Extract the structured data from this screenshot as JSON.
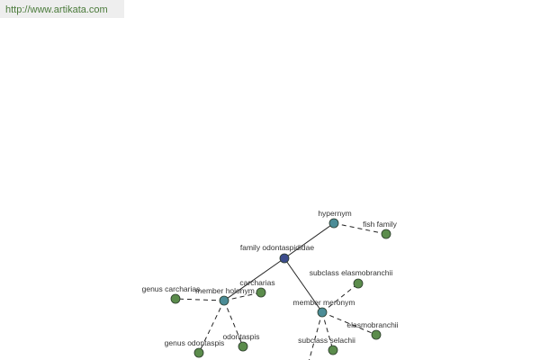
{
  "header": {
    "url": "http://www.artikata.com"
  },
  "nodes": [
    {
      "label": "hypernym"
    },
    {
      "label": "fish family"
    },
    {
      "label": "family odontaspididae"
    },
    {
      "label": "member holonym"
    },
    {
      "label": "carcharias"
    },
    {
      "label": "genus carcharias"
    },
    {
      "label": "genus odontaspis"
    },
    {
      "label": "odontaspis"
    },
    {
      "label": "member meronym"
    },
    {
      "label": "subclass elasmobranchii"
    },
    {
      "label": "elasmobranchii"
    },
    {
      "label": "subclass selachii"
    }
  ]
}
